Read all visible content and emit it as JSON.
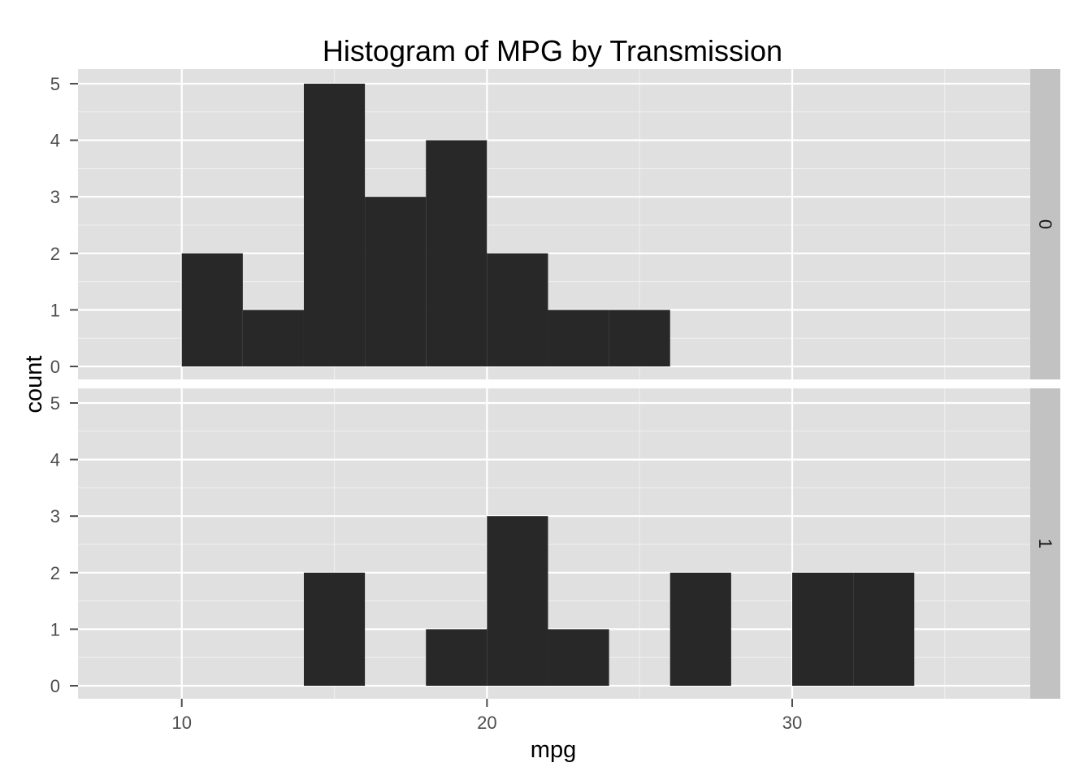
{
  "chart_data": {
    "type": "bar",
    "title": "Histogram of MPG by Transmission",
    "xlabel": "mpg",
    "ylabel": "count",
    "xlim": [
      6.6,
      37.8
    ],
    "ylim": [
      -0.25,
      5.25
    ],
    "x_ticks": [
      10,
      20,
      30
    ],
    "x_minor_ticks": [
      15,
      25,
      35
    ],
    "y_ticks": [
      0,
      1,
      2,
      3,
      4,
      5
    ],
    "grid": true,
    "bin_width": 2,
    "bar_color": "#282828",
    "panel_background": "#e0e0e0",
    "strip_background": "#c2c2c2",
    "panels": [
      {
        "facet_label": "0",
        "bins": [
          {
            "start": 10,
            "end": 12,
            "count": 2
          },
          {
            "start": 12,
            "end": 14,
            "count": 1
          },
          {
            "start": 14,
            "end": 16,
            "count": 5
          },
          {
            "start": 16,
            "end": 18,
            "count": 3
          },
          {
            "start": 18,
            "end": 20,
            "count": 4
          },
          {
            "start": 20,
            "end": 22,
            "count": 2
          },
          {
            "start": 22,
            "end": 24,
            "count": 1
          },
          {
            "start": 24,
            "end": 26,
            "count": 1
          }
        ]
      },
      {
        "facet_label": "1",
        "bins": [
          {
            "start": 14,
            "end": 16,
            "count": 2
          },
          {
            "start": 18,
            "end": 20,
            "count": 1
          },
          {
            "start": 20,
            "end": 22,
            "count": 3
          },
          {
            "start": 22,
            "end": 24,
            "count": 1
          },
          {
            "start": 26,
            "end": 28,
            "count": 2
          },
          {
            "start": 30,
            "end": 32,
            "count": 2
          },
          {
            "start": 32,
            "end": 34,
            "count": 2
          }
        ]
      }
    ]
  }
}
